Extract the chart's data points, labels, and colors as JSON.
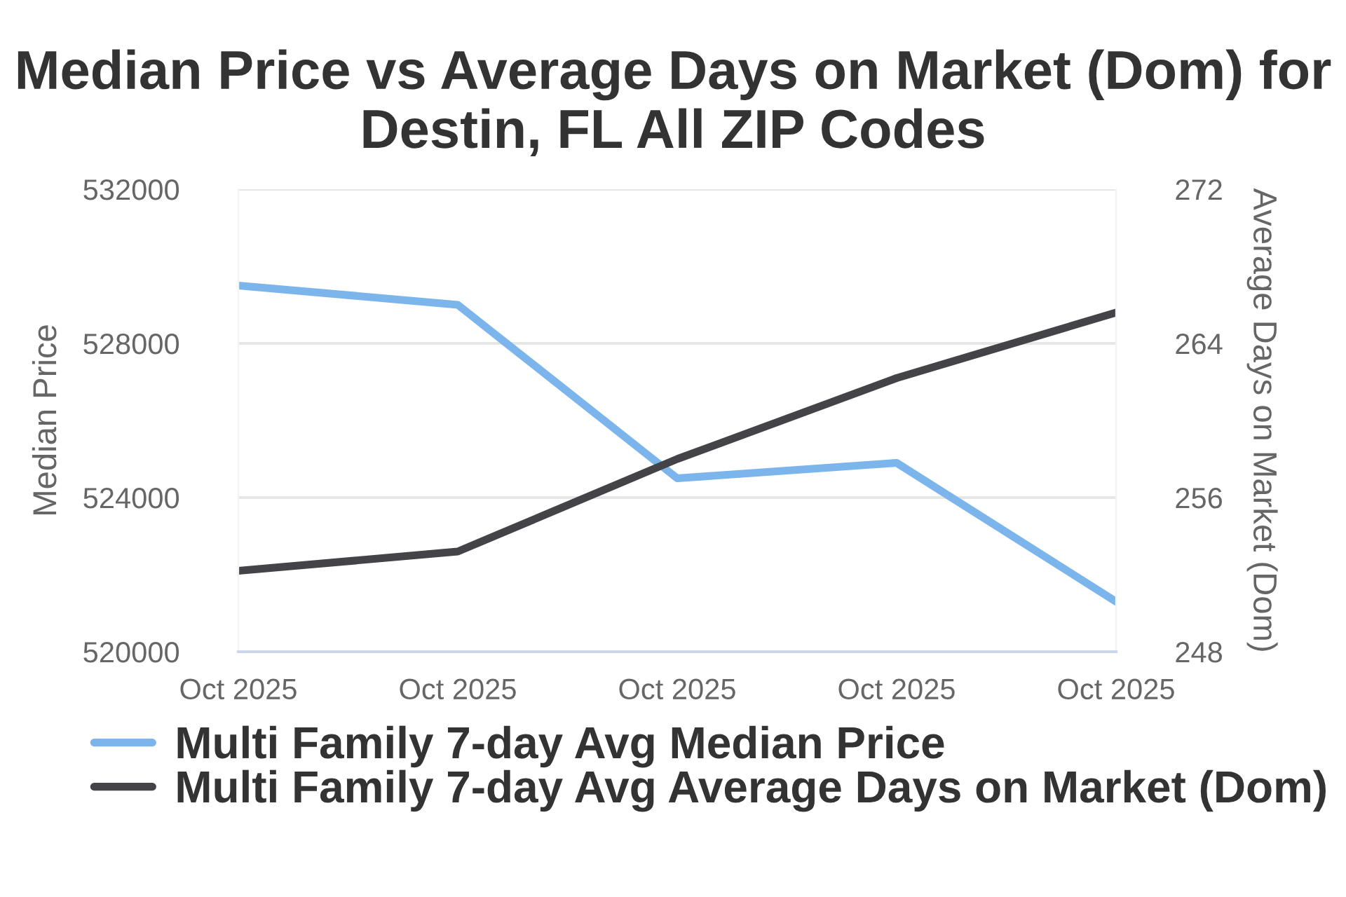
{
  "chart_data": {
    "type": "line",
    "title": "Median Price vs Average Days on Market (Dom) for Destin, FL All ZIP Codes",
    "ylabel": "Median Price",
    "y2label": "Average Days on Market (Dom)",
    "categories": [
      "Oct 2025",
      "Oct 2025",
      "Oct 2025",
      "Oct 2025",
      "Oct 2025"
    ],
    "series": [
      {
        "name": "Multi Family 7-day Avg Median Price",
        "color": "#7cb5ec",
        "values": [
          529500,
          529000,
          524500,
          524900,
          521300
        ]
      },
      {
        "name": "Multi Family 7-day Avg Average Days on Market (Dom)",
        "color": "#434348",
        "axis": "y2",
        "values": [
          252.2,
          253.2,
          258.0,
          262.2,
          265.6
        ]
      }
    ],
    "ylim": [
      520000,
      532000
    ],
    "yticks": [
      520000,
      524000,
      528000,
      532000
    ],
    "y2lim": [
      248,
      272
    ],
    "y2ticks": [
      248,
      256,
      264,
      272
    ],
    "grid": "y",
    "legend": "bottom",
    "marker": "none",
    "line_style": "solid"
  }
}
